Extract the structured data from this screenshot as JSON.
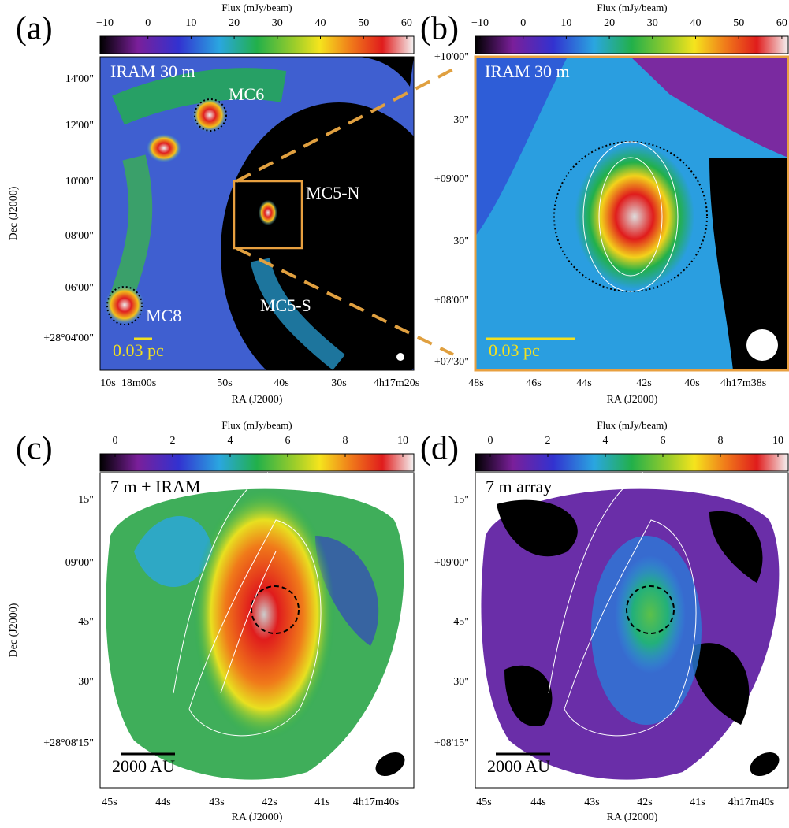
{
  "panels": [
    {
      "label": "(a)",
      "colorbar_title": "Flux (mJy/beam)",
      "colorbar_ticks": [
        "−10",
        "0",
        "10",
        "20",
        "30",
        "40",
        "50",
        "60"
      ],
      "image_label": "IRAM 30 m",
      "annotations": [
        "MC6",
        "MC5-N",
        "MC5-S",
        "MC8"
      ],
      "scale_label": "0.03 pc",
      "ylabel": "Dec (J2000)",
      "yticks": [
        "14'00\"",
        "12'00\"",
        "10'00\"",
        "08'00\"",
        "06'00\"",
        "+28°04'00\""
      ],
      "xlabel": "RA (J2000)",
      "xticks": [
        "10s",
        "18m00s",
        "50s",
        "40s",
        "30s",
        "4h17m20s"
      ]
    },
    {
      "label": "(b)",
      "colorbar_title": "Flux (mJy/beam)",
      "colorbar_ticks": [
        "−10",
        "0",
        "10",
        "20",
        "30",
        "40",
        "50",
        "60"
      ],
      "image_label": "IRAM 30 m",
      "scale_label": "0.03 pc",
      "yticks": [
        "+10'00\"",
        "30\"",
        "+09'00\"",
        "30\"",
        "+08'00\"",
        "+07'30\""
      ],
      "xlabel": "RA (J2000)",
      "xticks": [
        "48s",
        "46s",
        "44s",
        "42s",
        "40s",
        "4h17m38s"
      ]
    },
    {
      "label": "(c)",
      "colorbar_title": "Flux (mJy/beam)",
      "colorbar_ticks": [
        "0",
        "2",
        "4",
        "6",
        "8",
        "10"
      ],
      "image_label": "7 m + IRAM",
      "scale_label": "2000 AU",
      "ylabel": "Dec (J2000)",
      "yticks": [
        "15\"",
        "09'00\"",
        "45\"",
        "30\"",
        "+28°08'15\""
      ],
      "xlabel": "RA (J2000)",
      "xticks": [
        "45s",
        "44s",
        "43s",
        "42s",
        "41s",
        "4h17m40s"
      ]
    },
    {
      "label": "(d)",
      "colorbar_title": "Flux (mJy/beam)",
      "colorbar_ticks": [
        "0",
        "2",
        "4",
        "6",
        "8",
        "10"
      ],
      "image_label": "7 m array",
      "scale_label": "2000 AU",
      "yticks": [
        "15\"",
        "+09'00\"",
        "45\"",
        "30\"",
        "+08'15\""
      ],
      "xlabel": "RA (J2000)",
      "xticks": [
        "45s",
        "44s",
        "43s",
        "42s",
        "41s",
        "4h17m40s"
      ]
    }
  ]
}
